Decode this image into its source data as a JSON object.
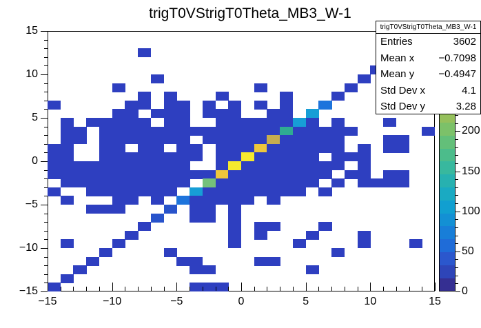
{
  "title": "trigT0VStrigT0Theta_MB3_W-1",
  "stats": {
    "title": "trigT0VStrigT0Theta_MB3_W-1",
    "rows": [
      {
        "label": "Entries",
        "value": "3602"
      },
      {
        "label": "Mean x",
        "value": "−0.7098"
      },
      {
        "label": "Mean y",
        "value": "−0.4947"
      },
      {
        "label": "Std Dev x",
        "value": "4.1"
      },
      {
        "label": "Std Dev y",
        "value": "3.28"
      }
    ]
  },
  "axes": {
    "x": {
      "min": -15,
      "max": 15,
      "major_step": 5,
      "minor_per_unit": 1,
      "major_labels": [
        "−15",
        "−10",
        "−5",
        "0",
        "5",
        "10",
        "15"
      ]
    },
    "y": {
      "min": -15,
      "max": 15,
      "major_step": 5,
      "major_labels": [
        "15",
        "10",
        "5",
        "0",
        "−5",
        "−10",
        "−15"
      ]
    },
    "z": {
      "min": 0,
      "max": 325,
      "tick_values": [
        0,
        50,
        100,
        150,
        200
      ],
      "major_labels": [
        "0",
        "50",
        "100",
        "150",
        "200"
      ]
    }
  },
  "palette": {
    "colors_bottom_to_top": [
      "#352f92",
      "#2e45b8",
      "#2b57cd",
      "#1f6cd8",
      "#187ed8",
      "#1390d4",
      "#119fd0",
      "#1aaac2",
      "#27b1b0",
      "#38b89e",
      "#4cbc8b",
      "#63bf79",
      "#7cc169",
      "#95c05c",
      "#adbe55",
      "#c2bb51",
      "#d5bd4a",
      "#e4c43f",
      "#eed333",
      "#f4e52a"
    ]
  },
  "chart_data": {
    "type": "heatmap",
    "title": "trigT0VStrigT0Theta_MB3_W-1",
    "x_range": [
      -15,
      15
    ],
    "y_range": [
      -15,
      15
    ],
    "z_range": [
      0,
      325
    ],
    "n_bins_x": 30,
    "n_bins_y": 30,
    "entries": 3602,
    "mean_x": -0.7098,
    "mean_y": -0.4947,
    "std_dev_x": 4.1,
    "std_dev_y": 3.28,
    "legend": {
      "b": {
        "value": 10,
        "color": "#2e3fc0"
      },
      "B": {
        "value": 40,
        "color": "#2853cb"
      },
      "L": {
        "value": 65,
        "color": "#1d74dc"
      },
      "C": {
        "value": 105,
        "color": "#179ed6"
      },
      "T": {
        "value": 160,
        "color": "#2fab92"
      },
      "G": {
        "value": 200,
        "color": "#74c17b"
      },
      "K": {
        "value": 260,
        "color": "#c6ad50"
      },
      "O": {
        "value": 285,
        "color": "#eec73c"
      },
      "Y": {
        "value": 318,
        "color": "#f5e92e"
      }
    },
    "grid_rows_top_to_bottom": [
      "..............................",
      "..............................",
      ".......b......................",
      "..............................",
      ".........................b....",
      "........b...............b.....",
      ".....b..........b......b......",
      ".......b.b...b....b...b.......",
      "b.....bb.bb.b.b.b.b..L........",
      ".....bb.bbb.bbb..bb.C.........",
      ".b.bbbbb.bb..bbbbbbCb.b...b...",
      ".bb.bbbbbbbbbbbbbbTbbbbb.....b",
      ".bb.bbbbbbb.bbbbbKbbbbb...bb..",
      "bb..bb.bb.bb.bbbObbbbbb.b.bb..",
      "bb..bbbbbbbb.bbYbbbbb.bbb.....",
      "bbbbbbbbbbb..bYbbbbbbbb.b.....",
      "bbbbbbbbbbbbbObbbbbbbb.bb.bb..",
      ".bbbbbbbbbb.Gbbbbbbbb.b.bbbb..",
      "b..bbbbbbb.Cbbbbbbbb.b........",
      ".b...bb.b.Lbbbbb.b............",
      "...bbb...B.bb.b...............",
      "........B..bb.b...............",
      ".......b......b.bb...b........",
      "......b.......b.b...b...b.....",
      ".b...b........b....b....b...b.",
      "....b....b............b.......",
      "...b......bb....bb............",
      "..b........bb.......b.........",
      ".b............................",
      "b..........bbb................"
    ]
  }
}
